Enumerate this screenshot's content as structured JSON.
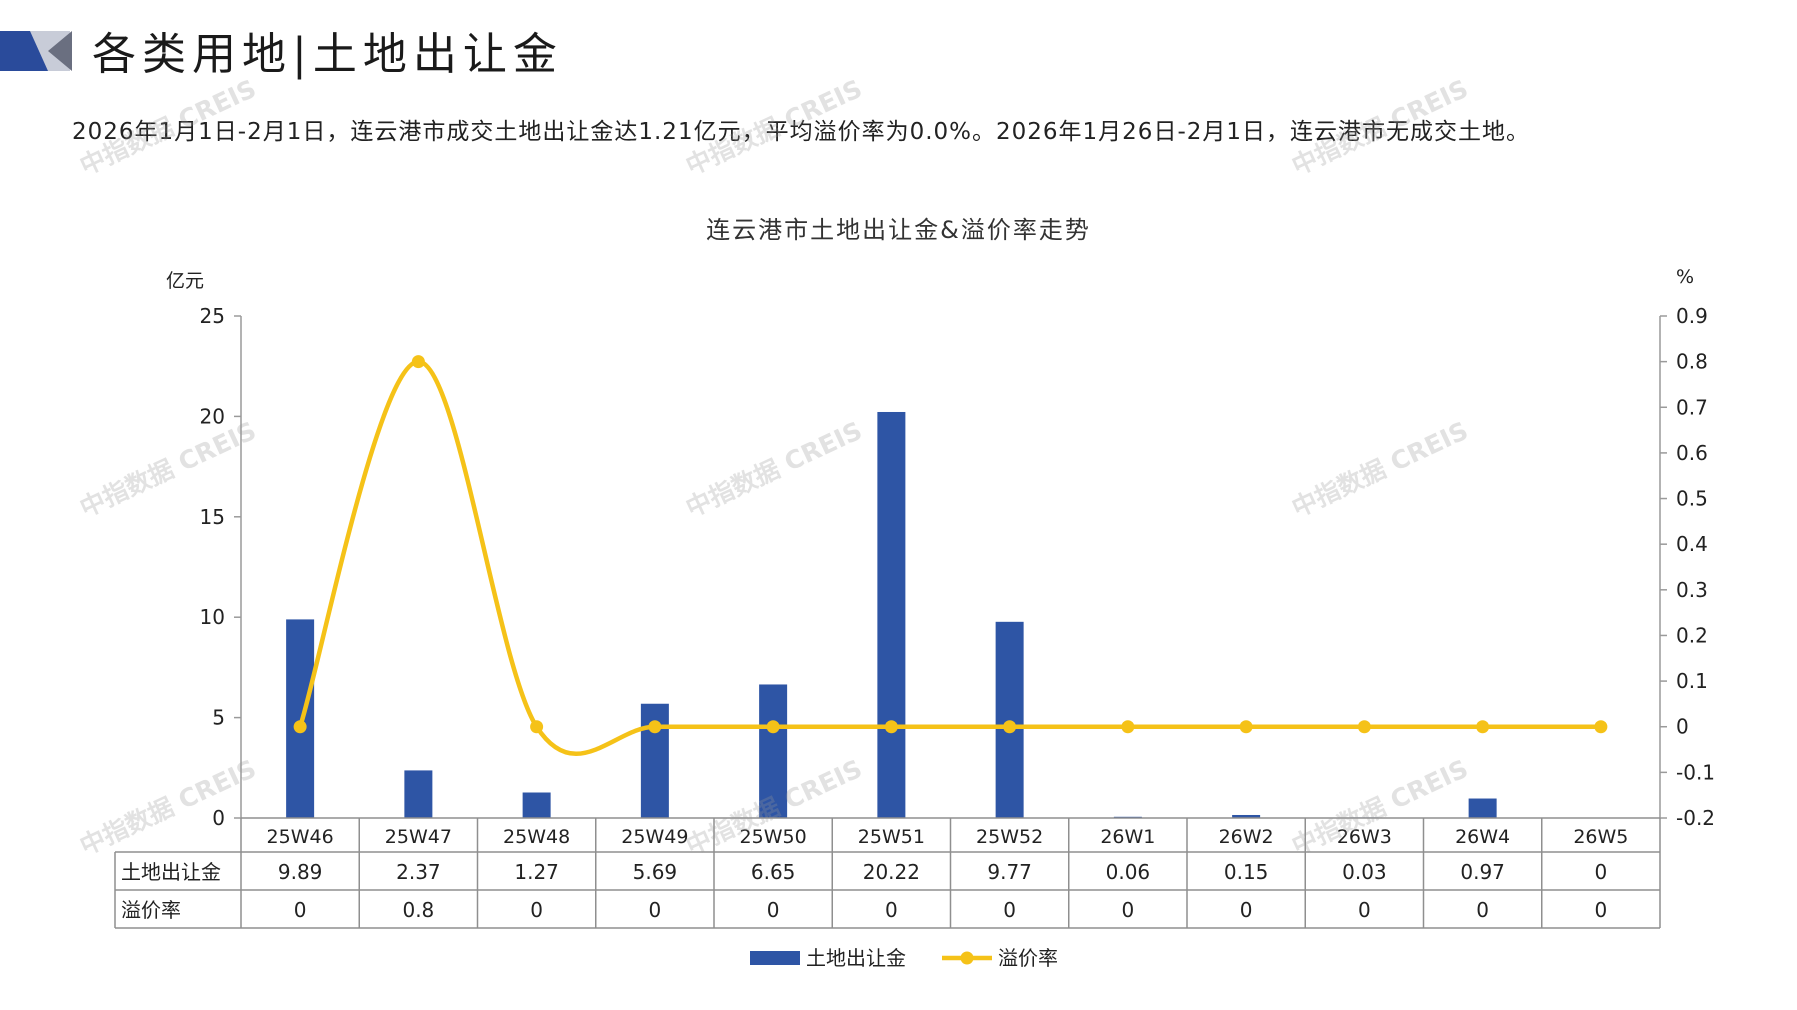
{
  "header": {
    "title": "各类用地|土地出让金",
    "summary": "2026年1月1日-2月1日，连云港市成交土地出让金达1.21亿元，平均溢价率为0.0%。2026年1月26日-2月1日，连云港市无成交土地。"
  },
  "watermark_text": "中指数据 CREIS",
  "colors": {
    "bar": "#2e55a5",
    "line": "#f5c218",
    "logo_dark": "#2a4b9b",
    "logo_light": "#c8ccd8"
  },
  "chart_data": {
    "type": "bar",
    "title": "连云港市土地出让金&溢价率走势",
    "y_left_unit": "亿元",
    "y_right_unit": "%",
    "ylim_left": [
      0,
      25
    ],
    "ylim_right": [
      -0.2,
      0.9
    ],
    "y_left_ticks": [
      0,
      5,
      10,
      15,
      20,
      25
    ],
    "y_right_ticks": [
      -0.2,
      -0.1,
      0,
      0.1,
      0.2,
      0.3,
      0.4,
      0.5,
      0.6,
      0.7,
      0.8,
      0.9
    ],
    "y_right_tick_labels": [
      "-0.2",
      "-0.1",
      "0",
      "0.1",
      "0.2",
      "0.3",
      "0.4",
      "0.5",
      "0.6",
      "0.7",
      "0.8",
      "0.9"
    ],
    "categories": [
      "25W46",
      "25W47",
      "25W48",
      "25W49",
      "25W50",
      "25W51",
      "25W52",
      "26W1",
      "26W2",
      "26W3",
      "26W4",
      "26W5"
    ],
    "series": [
      {
        "name": "土地出让金",
        "type": "bar",
        "axis": "left",
        "values": [
          9.89,
          2.37,
          1.27,
          5.69,
          6.65,
          20.22,
          9.77,
          0.06,
          0.15,
          0.03,
          0.97,
          0
        ],
        "labels": [
          "9.89",
          "2.37",
          "1.27",
          "5.69",
          "6.65",
          "20.22",
          "9.77",
          "0.06",
          "0.15",
          "0.03",
          "0.97",
          "0"
        ]
      },
      {
        "name": "溢价率",
        "type": "line",
        "axis": "right",
        "values": [
          0,
          0.8,
          0,
          0,
          0,
          0,
          0,
          0,
          0,
          0,
          0,
          0
        ],
        "labels": [
          "0",
          "0.8",
          "0",
          "0",
          "0",
          "0",
          "0",
          "0",
          "0",
          "0",
          "0",
          "0"
        ]
      }
    ],
    "legend_position": "bottom",
    "data_table": true,
    "grid": false
  }
}
